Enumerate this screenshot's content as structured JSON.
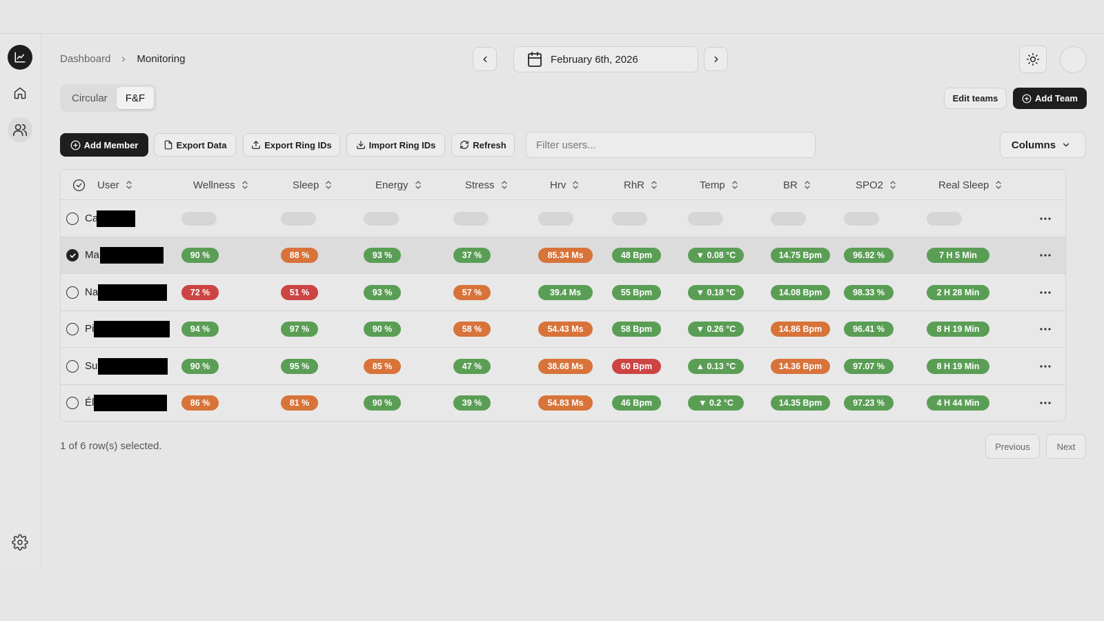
{
  "breadcrumb": {
    "root": "Dashboard",
    "current": "Monitoring"
  },
  "date": {
    "label": "February 6th, 2026"
  },
  "tabs": [
    {
      "label": "Circular"
    },
    {
      "label": "F&F"
    }
  ],
  "header_actions": {
    "edit_teams": "Edit teams",
    "add_team": "Add Team"
  },
  "toolbar": {
    "add_member": "Add Member",
    "export_data": "Export Data",
    "export_ring_ids": "Export Ring IDs",
    "import_ring_ids": "Import Ring IDs",
    "refresh": "Refresh",
    "filter_placeholder": "Filter users...",
    "columns": "Columns"
  },
  "columns": [
    "User",
    "Wellness",
    "Sleep",
    "Energy",
    "Stress",
    "Hrv",
    "RhR",
    "Temp",
    "BR",
    "SPO2",
    "Real Sleep"
  ],
  "colors": {
    "green": "#5a9e55",
    "orange": "#d8733a",
    "red": "#cc4443"
  },
  "rows": [
    {
      "name": "Ca",
      "selected": false,
      "loading": true,
      "cells": []
    },
    {
      "name": "Ma",
      "selected": true,
      "loading": false,
      "cells": [
        {
          "text": "90 %",
          "color": "green"
        },
        {
          "text": "88 %",
          "color": "orange"
        },
        {
          "text": "93 %",
          "color": "green"
        },
        {
          "text": "37 %",
          "color": "green"
        },
        {
          "text": "85.34 Ms",
          "color": "orange"
        },
        {
          "text": "48 Bpm",
          "color": "green"
        },
        {
          "text": "▼ 0.08 °C",
          "color": "green"
        },
        {
          "text": "14.75 Bpm",
          "color": "green"
        },
        {
          "text": "96.92 %",
          "color": "green"
        },
        {
          "text": "7 H 5 Min",
          "color": "green"
        }
      ]
    },
    {
      "name": "Na",
      "selected": false,
      "loading": false,
      "cells": [
        {
          "text": "72 %",
          "color": "red"
        },
        {
          "text": "51 %",
          "color": "red"
        },
        {
          "text": "93 %",
          "color": "green"
        },
        {
          "text": "57 %",
          "color": "orange"
        },
        {
          "text": "39.4 Ms",
          "color": "green"
        },
        {
          "text": "55 Bpm",
          "color": "green"
        },
        {
          "text": "▼ 0.18 °C",
          "color": "green"
        },
        {
          "text": "14.08 Bpm",
          "color": "green"
        },
        {
          "text": "98.33 %",
          "color": "green"
        },
        {
          "text": "2 H 28 Min",
          "color": "green"
        }
      ]
    },
    {
      "name": "Pi",
      "selected": false,
      "loading": false,
      "cells": [
        {
          "text": "94 %",
          "color": "green"
        },
        {
          "text": "97 %",
          "color": "green"
        },
        {
          "text": "90 %",
          "color": "green"
        },
        {
          "text": "58 %",
          "color": "orange"
        },
        {
          "text": "54.43 Ms",
          "color": "orange"
        },
        {
          "text": "58 Bpm",
          "color": "green"
        },
        {
          "text": "▼ 0.26 °C",
          "color": "green"
        },
        {
          "text": "14.86 Bpm",
          "color": "orange"
        },
        {
          "text": "96.41 %",
          "color": "green"
        },
        {
          "text": "8 H 19 Min",
          "color": "green"
        }
      ]
    },
    {
      "name": "Su",
      "selected": false,
      "loading": false,
      "cells": [
        {
          "text": "90 %",
          "color": "green"
        },
        {
          "text": "95 %",
          "color": "green"
        },
        {
          "text": "85 %",
          "color": "orange"
        },
        {
          "text": "47 %",
          "color": "green"
        },
        {
          "text": "38.68 Ms",
          "color": "orange"
        },
        {
          "text": "60 Bpm",
          "color": "red"
        },
        {
          "text": "▲ 0.13 °C",
          "color": "green"
        },
        {
          "text": "14.36 Bpm",
          "color": "orange"
        },
        {
          "text": "97.07 %",
          "color": "green"
        },
        {
          "text": "8 H 19 Min",
          "color": "green"
        }
      ]
    },
    {
      "name": "Él",
      "selected": false,
      "loading": false,
      "cells": [
        {
          "text": "86 %",
          "color": "orange"
        },
        {
          "text": "81 %",
          "color": "orange"
        },
        {
          "text": "90 %",
          "color": "green"
        },
        {
          "text": "39 %",
          "color": "green"
        },
        {
          "text": "54.83 Ms",
          "color": "orange"
        },
        {
          "text": "46 Bpm",
          "color": "green"
        },
        {
          "text": "▼ 0.2 °C",
          "color": "green"
        },
        {
          "text": "14.35 Bpm",
          "color": "green"
        },
        {
          "text": "97.23 %",
          "color": "green"
        },
        {
          "text": "4 H 44 Min",
          "color": "green"
        }
      ]
    }
  ],
  "footer": {
    "selection_text": "1 of 6 row(s) selected.",
    "previous": "Previous",
    "next": "Next"
  }
}
